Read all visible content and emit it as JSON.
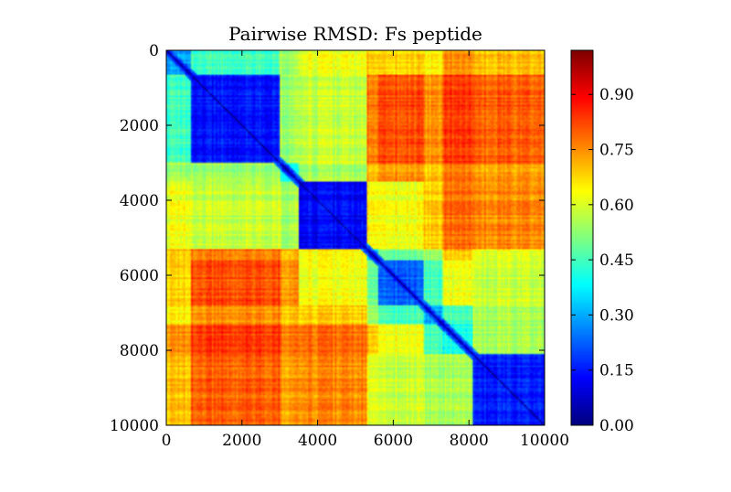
{
  "chart_data": {
    "type": "heatmap",
    "title": "Pairwise RMSD: Fs peptide",
    "xlabel": "",
    "ylabel": "",
    "colormap": "jet",
    "xlim": [
      0,
      10000
    ],
    "ylim": [
      0,
      10000
    ],
    "y_inverted": true,
    "x_ticks": [
      0,
      2000,
      4000,
      6000,
      8000,
      10000
    ],
    "x_tick_labels": [
      "0",
      "2000",
      "4000",
      "6000",
      "8000",
      "10000"
    ],
    "y_ticks": [
      0,
      2000,
      4000,
      6000,
      8000,
      10000
    ],
    "y_tick_labels": [
      "0",
      "2000",
      "4000",
      "6000",
      "8000",
      "10000"
    ],
    "colorbar": {
      "range": [
        0.0,
        1.02
      ],
      "ticks": [
        0.0,
        0.15,
        0.3,
        0.45,
        0.6,
        0.75,
        0.9
      ],
      "tick_labels": [
        "0.00",
        "0.15",
        "0.30",
        "0.45",
        "0.60",
        "0.75",
        "0.90"
      ]
    },
    "segments": [
      {
        "start": 0,
        "end": 650
      },
      {
        "start": 650,
        "end": 3000
      },
      {
        "start": 3000,
        "end": 3500
      },
      {
        "start": 3500,
        "end": 5300
      },
      {
        "start": 5300,
        "end": 5600
      },
      {
        "start": 5600,
        "end": 6800
      },
      {
        "start": 6800,
        "end": 7300
      },
      {
        "start": 7300,
        "end": 8100
      },
      {
        "start": 8100,
        "end": 10000
      }
    ],
    "segment_rmsd_matrix": [
      [
        0.3,
        0.45,
        0.55,
        0.62,
        0.7,
        0.68,
        0.65,
        0.75,
        0.7
      ],
      [
        0.45,
        0.15,
        0.55,
        0.58,
        0.78,
        0.82,
        0.75,
        0.84,
        0.8
      ],
      [
        0.55,
        0.55,
        0.4,
        0.55,
        0.72,
        0.75,
        0.7,
        0.78,
        0.74
      ],
      [
        0.62,
        0.58,
        0.55,
        0.12,
        0.65,
        0.62,
        0.68,
        0.78,
        0.75
      ],
      [
        0.7,
        0.78,
        0.72,
        0.65,
        0.35,
        0.5,
        0.55,
        0.7,
        0.62
      ],
      [
        0.68,
        0.82,
        0.75,
        0.62,
        0.5,
        0.22,
        0.45,
        0.62,
        0.58
      ],
      [
        0.65,
        0.75,
        0.7,
        0.68,
        0.55,
        0.45,
        0.3,
        0.45,
        0.55
      ],
      [
        0.75,
        0.84,
        0.78,
        0.78,
        0.7,
        0.62,
        0.45,
        0.4,
        0.55
      ],
      [
        0.7,
        0.8,
        0.74,
        0.75,
        0.62,
        0.58,
        0.55,
        0.55,
        0.15
      ]
    ]
  }
}
